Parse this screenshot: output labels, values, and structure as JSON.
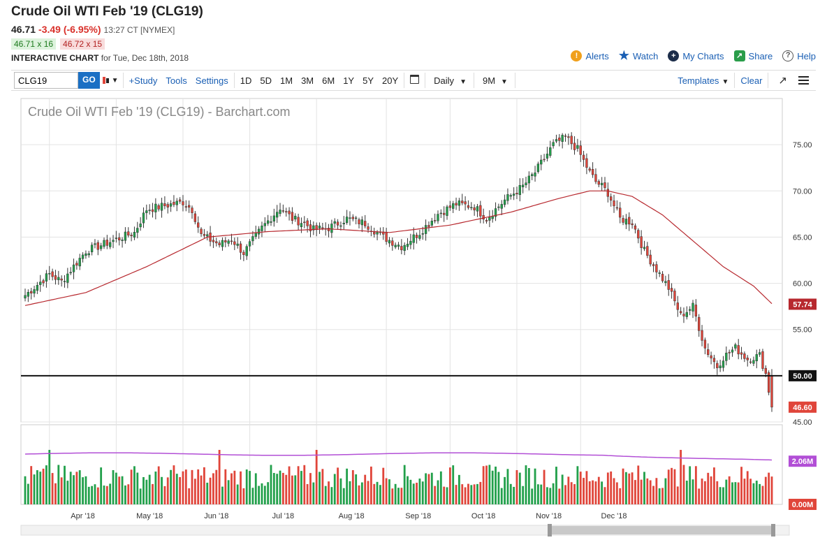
{
  "header": {
    "title": "Crude Oil WTI Feb '19 (CLG19)",
    "last": "46.71",
    "change": "-3.49 (-6.95%)",
    "time": "13:27 CT [NYMEX]",
    "bid": "46.71 x 16",
    "ask": "46.72 x 15",
    "chart_label": "INTERACTIVE CHART",
    "chart_date": "for Tue, Dec 18th, 2018",
    "links": [
      "Alerts",
      "Watch",
      "My Charts",
      "Share",
      "Help"
    ]
  },
  "toolbar": {
    "symbol": "CLG19",
    "go": "GO",
    "study": "+Study",
    "tools": "Tools",
    "settings": "Settings",
    "ranges": [
      "1D",
      "5D",
      "1M",
      "3M",
      "6M",
      "1Y",
      "5Y",
      "20Y"
    ],
    "period": "Daily",
    "span": "9M",
    "templates": "Templates",
    "clear": "Clear"
  },
  "chart_data": {
    "type": "candlestick",
    "title": "Crude Oil WTI Feb '19 (CLG19) - Barchart.com",
    "up_color": "#22a04b",
    "down_color": "#e0453a",
    "ma_color": "#b7282e",
    "vol_avg_color": "#b24fd6",
    "price_ylim": [
      45,
      80
    ],
    "price_ticks": [
      "45.00",
      "50.00",
      "55.00",
      "60.00",
      "65.00",
      "70.00",
      "75.00"
    ],
    "x_labels": [
      "Apr '18",
      "May '18",
      "Jun '18",
      "Jul '18",
      "Aug '18",
      "Sep '18",
      "Oct '18",
      "Nov '18",
      "Dec '18"
    ],
    "close_waypoints": [
      [
        0,
        58.7
      ],
      [
        8,
        61.0
      ],
      [
        12,
        60.2
      ],
      [
        20,
        63.5
      ],
      [
        28,
        64.5
      ],
      [
        36,
        65.5
      ],
      [
        40,
        68.0
      ],
      [
        52,
        68.8
      ],
      [
        55,
        68.0
      ],
      [
        58,
        65.2
      ],
      [
        64,
        64.2
      ],
      [
        68,
        64.8
      ],
      [
        72,
        63.3
      ],
      [
        78,
        66.0
      ],
      [
        84,
        68.2
      ],
      [
        88,
        67.0
      ],
      [
        92,
        66.5
      ],
      [
        95,
        65.8
      ],
      [
        100,
        66.0
      ],
      [
        106,
        67.0
      ],
      [
        112,
        66.5
      ],
      [
        118,
        65.0
      ],
      [
        124,
        64.0
      ],
      [
        130,
        65.5
      ],
      [
        136,
        67.5
      ],
      [
        142,
        68.6
      ],
      [
        148,
        68.3
      ],
      [
        152,
        67.0
      ],
      [
        158,
        69.0
      ],
      [
        164,
        70.5
      ],
      [
        168,
        72.0
      ],
      [
        174,
        75.0
      ],
      [
        178,
        75.8
      ],
      [
        182,
        74.5
      ],
      [
        186,
        72.0
      ],
      [
        188,
        71.0
      ],
      [
        190,
        70.5
      ],
      [
        192,
        69.8
      ],
      [
        196,
        67.0
      ],
      [
        200,
        66.6
      ],
      [
        204,
        63.5
      ],
      [
        208,
        61.5
      ],
      [
        212,
        59.5
      ],
      [
        216,
        56.5
      ],
      [
        220,
        57.5
      ],
      [
        224,
        53.0
      ],
      [
        228,
        51.0
      ],
      [
        230,
        52.0
      ],
      [
        234,
        53.0
      ],
      [
        238,
        51.8
      ],
      [
        242,
        52.2
      ],
      [
        244,
        50.2
      ],
      [
        246,
        46.6
      ]
    ],
    "moving_average": {
      "last": 57.74,
      "waypoints": [
        [
          0,
          57.6
        ],
        [
          20,
          59.0
        ],
        [
          40,
          61.8
        ],
        [
          60,
          65.0
        ],
        [
          80,
          65.6
        ],
        [
          100,
          65.9
        ],
        [
          120,
          65.5
        ],
        [
          140,
          66.3
        ],
        [
          160,
          67.7
        ],
        [
          176,
          69.2
        ],
        [
          186,
          70.0
        ],
        [
          192,
          70.0
        ],
        [
          200,
          69.4
        ],
        [
          210,
          67.4
        ],
        [
          220,
          64.6
        ],
        [
          230,
          61.8
        ],
        [
          240,
          59.7
        ],
        [
          246,
          57.8
        ]
      ]
    },
    "support_level": 50.0,
    "last_price": 46.6,
    "volume_ylim": [
      0,
      3.8
    ],
    "volume_labels": [
      "2.06M",
      "0.00M"
    ],
    "volume_avg_level": 2.06
  }
}
